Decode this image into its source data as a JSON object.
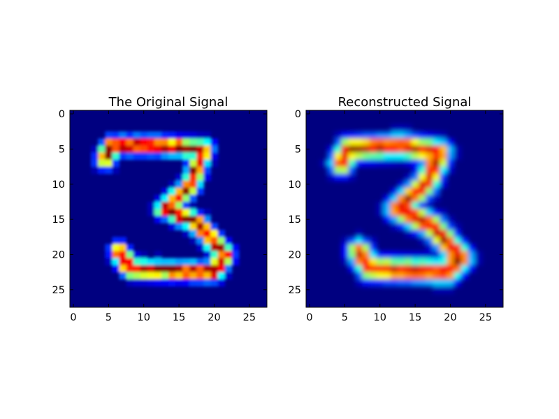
{
  "chart_data": [
    {
      "type": "heatmap",
      "title": "The Original Signal",
      "colormap": "jet",
      "grid": false,
      "xlim": [
        -0.5,
        27.5
      ],
      "ylim": [
        27.5,
        -0.5
      ],
      "xticks": [
        "0",
        "5",
        "10",
        "15",
        "20",
        "25"
      ],
      "yticks": [
        "0",
        "5",
        "10",
        "15",
        "20",
        "25"
      ],
      "values_description": "28x28 image of handwritten digit 3; stroke pixels high (red/yellow), background low (dark blue)",
      "stroke_segments": [
        {
          "from": [
            5.5,
            4.5
          ],
          "to": [
            12.5,
            4.5
          ]
        },
        {
          "from": [
            5.5,
            4.5
          ],
          "to": [
            4.5,
            6.5
          ]
        },
        {
          "from": [
            12.5,
            4.5
          ],
          "to": [
            18.5,
            5.0
          ]
        },
        {
          "from": [
            18.5,
            5.0
          ],
          "to": [
            16.5,
            10.5
          ]
        },
        {
          "from": [
            16.5,
            10.5
          ],
          "to": [
            13.0,
            13.5
          ]
        },
        {
          "from": [
            13.0,
            13.5
          ],
          "to": [
            17.5,
            15.5
          ]
        },
        {
          "from": [
            17.5,
            15.5
          ],
          "to": [
            21.5,
            20.0
          ]
        },
        {
          "from": [
            21.5,
            20.0
          ],
          "to": [
            20.0,
            22.5
          ]
        },
        {
          "from": [
            20.0,
            22.5
          ],
          "to": [
            8.0,
            22.0
          ]
        },
        {
          "from": [
            8.0,
            22.0
          ],
          "to": [
            6.5,
            19.5
          ]
        }
      ]
    },
    {
      "type": "heatmap",
      "title": "Reconstructed Signal",
      "colormap": "jet",
      "grid": false,
      "xlim": [
        -0.5,
        27.5
      ],
      "ylim": [
        27.5,
        -0.5
      ],
      "xticks": [
        "0",
        "5",
        "10",
        "15",
        "20",
        "25"
      ],
      "yticks": [
        "0",
        "5",
        "10",
        "15",
        "20",
        "25"
      ],
      "values_description": "28x28 reconstruction of the digit 3; smoother, blurrier version of the original",
      "stroke_segments": [
        {
          "from": [
            5.5,
            5.0
          ],
          "to": [
            13.0,
            4.5
          ]
        },
        {
          "from": [
            5.5,
            5.0
          ],
          "to": [
            4.5,
            7.0
          ]
        },
        {
          "from": [
            13.0,
            4.5
          ],
          "to": [
            18.5,
            5.5
          ]
        },
        {
          "from": [
            18.5,
            5.5
          ],
          "to": [
            16.5,
            10.0
          ]
        },
        {
          "from": [
            16.5,
            10.0
          ],
          "to": [
            12.5,
            13.5
          ]
        },
        {
          "from": [
            12.5,
            13.5
          ],
          "to": [
            17.5,
            16.0
          ]
        },
        {
          "from": [
            17.5,
            16.0
          ],
          "to": [
            21.5,
            20.5
          ]
        },
        {
          "from": [
            21.5,
            20.5
          ],
          "to": [
            19.5,
            22.5
          ]
        },
        {
          "from": [
            19.5,
            22.5
          ],
          "to": [
            8.5,
            22.0
          ]
        },
        {
          "from": [
            8.5,
            22.0
          ],
          "to": [
            7.0,
            19.5
          ]
        }
      ]
    }
  ]
}
